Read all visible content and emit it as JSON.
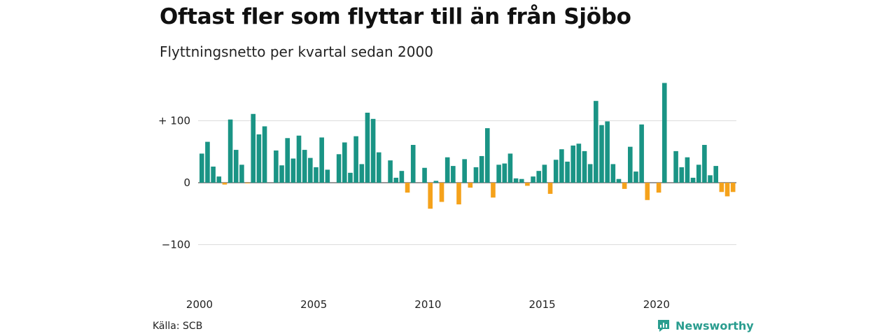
{
  "title": "Oftast fler som flyttar till än från Sjöbo",
  "subtitle": "Flyttningsnetto per kvartal sedan 2000",
  "source": "Källa: SCB",
  "brand": {
    "name": "Newsworthy",
    "color": "#2a9d8f"
  },
  "colors": {
    "positive": "#1a9485",
    "negative": "#f5a21b",
    "grid": "#dcdcdc",
    "zero": "#333333"
  },
  "chart_data": {
    "type": "bar",
    "x_start": "2000 Q1",
    "ylim": [
      -160,
      170
    ],
    "yticks": [
      {
        "value": 100,
        "label": "+ 100"
      },
      {
        "value": 0,
        "label": "0"
      },
      {
        "value": -100,
        "label": "−100"
      }
    ],
    "xticks": [
      "2000",
      "2005",
      "2010",
      "2015",
      "2020"
    ],
    "grid": true,
    "values": [
      47,
      66,
      26,
      10,
      -3,
      102,
      53,
      29,
      -1,
      111,
      78,
      91,
      0,
      52,
      28,
      72,
      39,
      76,
      53,
      40,
      25,
      73,
      21,
      0,
      46,
      65,
      16,
      75,
      30,
      113,
      103,
      49,
      0,
      36,
      8,
      19,
      -16,
      61,
      0,
      24,
      -42,
      3,
      -31,
      41,
      27,
      -35,
      38,
      -8,
      25,
      43,
      88,
      -24,
      29,
      31,
      47,
      7,
      6,
      -5,
      10,
      19,
      29,
      -18,
      37,
      54,
      34,
      60,
      63,
      51,
      30,
      132,
      93,
      99,
      30,
      6,
      -10,
      58,
      18,
      94,
      -28,
      0,
      -16,
      161,
      0,
      51,
      25,
      41,
      8,
      29,
      61,
      12,
      27,
      -15,
      -22,
      -15
    ]
  }
}
